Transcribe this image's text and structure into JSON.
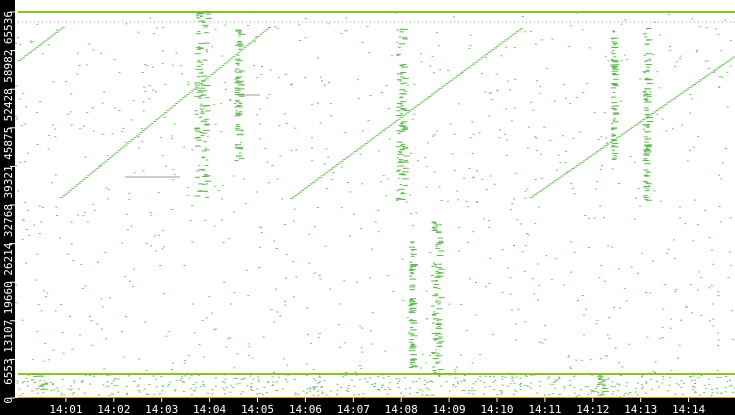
{
  "chart_data": {
    "type": "scatter",
    "xlabel": "",
    "ylabel": "",
    "xlim": [
      "14:00:00",
      "14:15:00"
    ],
    "ylim": [
      0,
      65536
    ],
    "grid": false,
    "legend": "none",
    "x_ticks": [
      "14:01",
      "14:02",
      "14:03",
      "14:04",
      "14:05",
      "14:06",
      "14:07",
      "14:08",
      "14:09",
      "14:10",
      "14:11",
      "14:12",
      "14:13",
      "14:14"
    ],
    "y_ticks": [
      0,
      6553,
      13107,
      19660,
      26214,
      32768,
      39321,
      45875,
      52428,
      58982,
      65536
    ],
    "colors": {
      "point": "#72c462",
      "burst": "#5fb84f",
      "line": "#8cc21a",
      "line_hot": "#e0a000",
      "axis_bg": "#000000",
      "axis_text": "#ffffff",
      "dotted": "#9a9a9a"
    },
    "scan_lines": [
      {
        "start": [
          "14:00:00",
          57386
        ],
        "end": [
          "14:00:55",
          62990
        ]
      },
      {
        "start": [
          "14:00:53",
          34126
        ],
        "end": [
          "14:05:13",
          62990
        ]
      },
      {
        "start": [
          "14:05:41",
          33956
        ],
        "end": [
          "14:10:29",
          62820
        ]
      },
      {
        "start": [
          "14:10:41",
          34126
        ],
        "end": [
          "14:14:58",
          58236
        ]
      }
    ],
    "horizontal_lines": [
      {
        "port": 65536,
        "from": "14:00:00",
        "to": "14:15:00",
        "style": "solid"
      },
      {
        "port": 63837,
        "from": "14:00:00",
        "to": "14:15:00",
        "style": "dotted"
      },
      {
        "port": 4075,
        "from": "14:00:00",
        "to": "14:15:00",
        "style": "solid"
      },
      {
        "port": 0,
        "from": "14:00:00",
        "to": "14:15:00",
        "style": "solid"
      },
      {
        "port": 37522,
        "from": "14:02:14",
        "to": "14:03:23",
        "style": "thin"
      },
      {
        "port": 51444,
        "from": "14:04:34",
        "to": "14:05:03",
        "style": "thin"
      }
    ],
    "bursts": [
      {
        "time": "14:03:48",
        "port_range": [
          33617,
          65536
        ],
        "width_s": 15
      },
      {
        "time": "14:04:34",
        "port_range": [
          40407,
          62820
        ],
        "width_s": 6
      },
      {
        "time": "14:07:58",
        "port_range": [
          33617,
          62820
        ],
        "width_s": 10
      },
      {
        "time": "14:08:11",
        "port_range": [
          4754,
          26825
        ],
        "width_s": 4
      },
      {
        "time": "14:08:42",
        "port_range": [
          3056,
          30221
        ],
        "width_s": 10
      },
      {
        "time": "14:12:09",
        "port_range": [
          509,
          5093
        ],
        "width_s": 8
      },
      {
        "time": "14:12:24",
        "port_range": [
          40407,
          62481
        ],
        "width_s": 4
      },
      {
        "time": "14:13:05",
        "port_range": [
          33617,
          62820
        ],
        "width_s": 6
      },
      {
        "time": "14:00:25",
        "port_range": [
          1200,
          4900
        ],
        "width_s": 20
      }
    ]
  }
}
